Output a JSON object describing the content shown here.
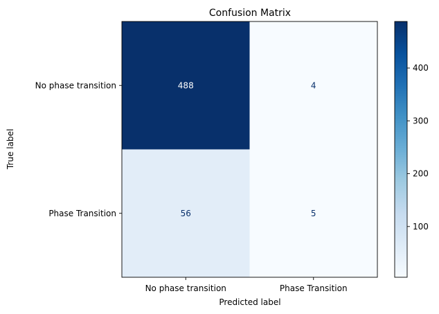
{
  "chart_data": {
    "type": "heatmap",
    "title": "Confusion Matrix",
    "xlabel": "Predicted label",
    "ylabel": "True label",
    "x_categories": [
      "No phase transition",
      "Phase Transition"
    ],
    "y_categories": [
      "No phase transition",
      "Phase Transition"
    ],
    "matrix": [
      [
        488,
        4
      ],
      [
        56,
        5
      ]
    ],
    "cell_labels": [
      [
        "488",
        "4"
      ],
      [
        "56",
        "5"
      ]
    ],
    "colormap": "Blues",
    "colorbar": {
      "range": [
        4,
        488
      ],
      "ticks": [
        100,
        200,
        300,
        400
      ],
      "tick_labels": [
        "100",
        "200",
        "300",
        "400"
      ]
    },
    "colors": {
      "low": "#f7fbff",
      "high": "#08306b",
      "text_on_dark": "#ffffff",
      "text_on_light": "#08306b"
    }
  }
}
